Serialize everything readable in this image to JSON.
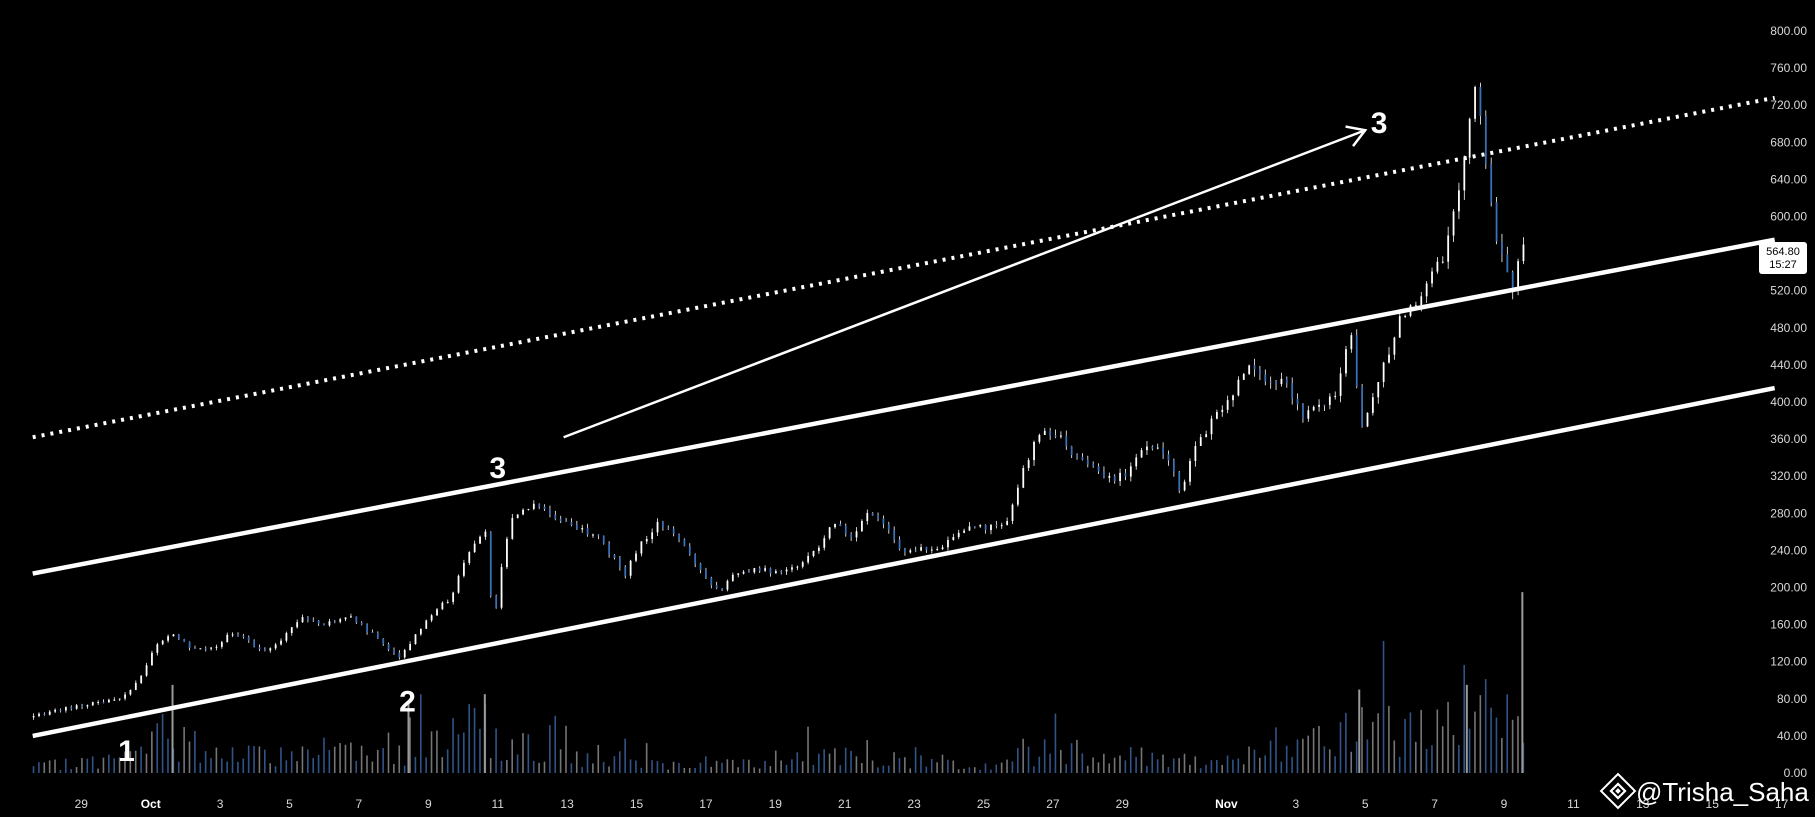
{
  "chart_data": {
    "type": "candlestick",
    "title": "",
    "xlabel": "",
    "ylabel": "",
    "ylim": [
      -12,
      812
    ],
    "y_ticks": [
      "800.00",
      "760.00",
      "720.00",
      "680.00",
      "640.00",
      "600.00",
      "560.00",
      "520.00",
      "480.00",
      "440.00",
      "400.00",
      "360.00",
      "320.00",
      "280.00",
      "240.00",
      "200.00",
      "160.00",
      "120.00",
      "80.00",
      "40.00",
      "0.00"
    ],
    "x_ticks": [
      {
        "label": "29",
        "day": -1,
        "bold": false
      },
      {
        "label": "Oct",
        "day": 1,
        "bold": true
      },
      {
        "label": "3",
        "day": 3,
        "bold": false
      },
      {
        "label": "5",
        "day": 5,
        "bold": false
      },
      {
        "label": "7",
        "day": 7,
        "bold": false
      },
      {
        "label": "9",
        "day": 9,
        "bold": false
      },
      {
        "label": "11",
        "day": 11,
        "bold": false
      },
      {
        "label": "13",
        "day": 13,
        "bold": false
      },
      {
        "label": "15",
        "day": 15,
        "bold": false
      },
      {
        "label": "17",
        "day": 17,
        "bold": false
      },
      {
        "label": "19",
        "day": 19,
        "bold": false
      },
      {
        "label": "21",
        "day": 21,
        "bold": false
      },
      {
        "label": "23",
        "day": 23,
        "bold": false
      },
      {
        "label": "25",
        "day": 25,
        "bold": false
      },
      {
        "label": "27",
        "day": 27,
        "bold": false
      },
      {
        "label": "29",
        "day": 29,
        "bold": false
      },
      {
        "label": "Nov",
        "day": 32,
        "bold": true
      },
      {
        "label": "3",
        "day": 34,
        "bold": false
      },
      {
        "label": "5",
        "day": 36,
        "bold": false
      },
      {
        "label": "7",
        "day": 38,
        "bold": false
      },
      {
        "label": "9",
        "day": 40,
        "bold": false
      },
      {
        "label": "11",
        "day": 42,
        "bold": false
      },
      {
        "label": "13",
        "day": 44,
        "bold": false
      },
      {
        "label": "15",
        "day": 46,
        "bold": false
      },
      {
        "label": "17",
        "day": 48,
        "bold": false
      }
    ],
    "price_path": [
      {
        "day": -2.4,
        "price": 60
      },
      {
        "day": 0.0,
        "price": 80
      },
      {
        "day": 0.3,
        "price": 80
      },
      {
        "day": 0.8,
        "price": 100
      },
      {
        "day": 1.3,
        "price": 140
      },
      {
        "day": 1.8,
        "price": 150
      },
      {
        "day": 2.3,
        "price": 135
      },
      {
        "day": 3.0,
        "price": 135
      },
      {
        "day": 3.4,
        "price": 150
      },
      {
        "day": 3.8,
        "price": 145
      },
      {
        "day": 4.4,
        "price": 130
      },
      {
        "day": 4.8,
        "price": 140
      },
      {
        "day": 5.5,
        "price": 170
      },
      {
        "day": 6.1,
        "price": 160
      },
      {
        "day": 6.8,
        "price": 170
      },
      {
        "day": 7.5,
        "price": 150
      },
      {
        "day": 8.3,
        "price": 125
      },
      {
        "day": 8.8,
        "price": 150
      },
      {
        "day": 9.3,
        "price": 175
      },
      {
        "day": 9.8,
        "price": 190
      },
      {
        "day": 10.3,
        "price": 240
      },
      {
        "day": 10.8,
        "price": 260
      },
      {
        "day": 11.0,
        "price": 155
      },
      {
        "day": 11.3,
        "price": 240
      },
      {
        "day": 11.6,
        "price": 280
      },
      {
        "day": 12.3,
        "price": 290
      },
      {
        "day": 12.8,
        "price": 275
      },
      {
        "day": 13.3,
        "price": 265
      },
      {
        "day": 14.0,
        "price": 255
      },
      {
        "day": 14.8,
        "price": 215
      },
      {
        "day": 15.3,
        "price": 250
      },
      {
        "day": 15.8,
        "price": 270
      },
      {
        "day": 16.4,
        "price": 250
      },
      {
        "day": 17.0,
        "price": 215
      },
      {
        "day": 17.5,
        "price": 195
      },
      {
        "day": 18.0,
        "price": 215
      },
      {
        "day": 18.6,
        "price": 220
      },
      {
        "day": 19.3,
        "price": 215
      },
      {
        "day": 19.8,
        "price": 225
      },
      {
        "day": 20.3,
        "price": 240
      },
      {
        "day": 20.8,
        "price": 270
      },
      {
        "day": 21.3,
        "price": 255
      },
      {
        "day": 21.8,
        "price": 280
      },
      {
        "day": 22.3,
        "price": 265
      },
      {
        "day": 22.8,
        "price": 235
      },
      {
        "day": 23.3,
        "price": 245
      },
      {
        "day": 23.8,
        "price": 240
      },
      {
        "day": 24.3,
        "price": 255
      },
      {
        "day": 24.8,
        "price": 265
      },
      {
        "day": 25.3,
        "price": 265
      },
      {
        "day": 25.8,
        "price": 270
      },
      {
        "day": 26.3,
        "price": 330
      },
      {
        "day": 26.8,
        "price": 370
      },
      {
        "day": 27.3,
        "price": 365
      },
      {
        "day": 27.8,
        "price": 340
      },
      {
        "day": 28.3,
        "price": 330
      },
      {
        "day": 28.8,
        "price": 315
      },
      {
        "day": 29.3,
        "price": 325
      },
      {
        "day": 29.8,
        "price": 355
      },
      {
        "day": 30.4,
        "price": 345
      },
      {
        "day": 30.8,
        "price": 305
      },
      {
        "day": 31.3,
        "price": 355
      },
      {
        "day": 31.8,
        "price": 385
      },
      {
        "day": 32.3,
        "price": 405
      },
      {
        "day": 32.8,
        "price": 445
      },
      {
        "day": 33.3,
        "price": 420
      },
      {
        "day": 33.8,
        "price": 425
      },
      {
        "day": 34.3,
        "price": 385
      },
      {
        "day": 34.8,
        "price": 400
      },
      {
        "day": 35.3,
        "price": 405
      },
      {
        "day": 35.7,
        "price": 480
      },
      {
        "day": 36.0,
        "price": 375
      },
      {
        "day": 36.4,
        "price": 405
      },
      {
        "day": 36.8,
        "price": 455
      },
      {
        "day": 37.2,
        "price": 495
      },
      {
        "day": 37.6,
        "price": 510
      },
      {
        "day": 38.0,
        "price": 535
      },
      {
        "day": 38.4,
        "price": 560
      },
      {
        "day": 38.7,
        "price": 610
      },
      {
        "day": 39.0,
        "price": 660
      },
      {
        "day": 39.3,
        "price": 745
      },
      {
        "day": 39.6,
        "price": 660
      },
      {
        "day": 39.9,
        "price": 580
      },
      {
        "day": 40.2,
        "price": 545
      },
      {
        "day": 40.4,
        "price": 510
      },
      {
        "day": 40.6,
        "price": 565
      }
    ],
    "volume_profile": [
      {
        "day": -2.4,
        "vol": 8
      },
      {
        "day": 0.3,
        "vol": 20
      },
      {
        "day": 1.5,
        "vol": 55
      },
      {
        "day": 3.0,
        "vol": 22
      },
      {
        "day": 8.0,
        "vol": 28
      },
      {
        "day": 10.5,
        "vol": 60
      },
      {
        "day": 12.5,
        "vol": 25
      },
      {
        "day": 16.0,
        "vol": 12
      },
      {
        "day": 21.0,
        "vol": 22
      },
      {
        "day": 25.0,
        "vol": 10
      },
      {
        "day": 27.0,
        "vol": 35
      },
      {
        "day": 31.0,
        "vol": 18
      },
      {
        "day": 33.0,
        "vol": 25
      },
      {
        "day": 35.5,
        "vol": 55
      },
      {
        "day": 38.5,
        "vol": 70
      },
      {
        "day": 40.5,
        "vol": 85
      }
    ],
    "volume_peaks": [
      {
        "day": 1.6,
        "vol": 95
      },
      {
        "day": 8.4,
        "vol": 78
      },
      {
        "day": 10.6,
        "vol": 85
      },
      {
        "day": 35.8,
        "vol": 90
      },
      {
        "day": 38.9,
        "vol": 95
      },
      {
        "day": 40.5,
        "vol": 195
      }
    ],
    "trendlines": [
      {
        "name": "upper-channel",
        "style": "solid",
        "points": [
          {
            "day": -2.4,
            "price": 215
          },
          {
            "day": 47.8,
            "price": 575
          }
        ]
      },
      {
        "name": "lower-channel",
        "style": "solid",
        "points": [
          {
            "day": -2.4,
            "price": 40
          },
          {
            "day": 47.8,
            "price": 415
          }
        ]
      },
      {
        "name": "dotted-projection",
        "style": "dotted",
        "points": [
          {
            "day": -2.4,
            "price": 362
          },
          {
            "day": 47.8,
            "price": 728
          }
        ]
      },
      {
        "name": "target-arrow",
        "style": "arrow",
        "points": [
          {
            "day": 12.9,
            "price": 362
          },
          {
            "day": 36.0,
            "price": 693
          }
        ]
      }
    ],
    "annotations": [
      {
        "text": "1",
        "day": 0.3,
        "price": 25
      },
      {
        "text": "2",
        "day": 8.4,
        "price": 78
      },
      {
        "text": "3",
        "day": 11.0,
        "price": 330
      },
      {
        "text": "3",
        "day": 36.4,
        "price": 702
      }
    ],
    "current_price": {
      "price": "564.80",
      "countdown": "15:27",
      "value": 564.8
    },
    "watermark": "@Trisha_Saha",
    "grid": false,
    "colors": {
      "background": "#000000",
      "candle": "#3b6fb6",
      "candle_wick": "#ffffff",
      "volume": "#3a63a0",
      "lines": "#ffffff",
      "axis_text": "#d9d9d9"
    }
  }
}
